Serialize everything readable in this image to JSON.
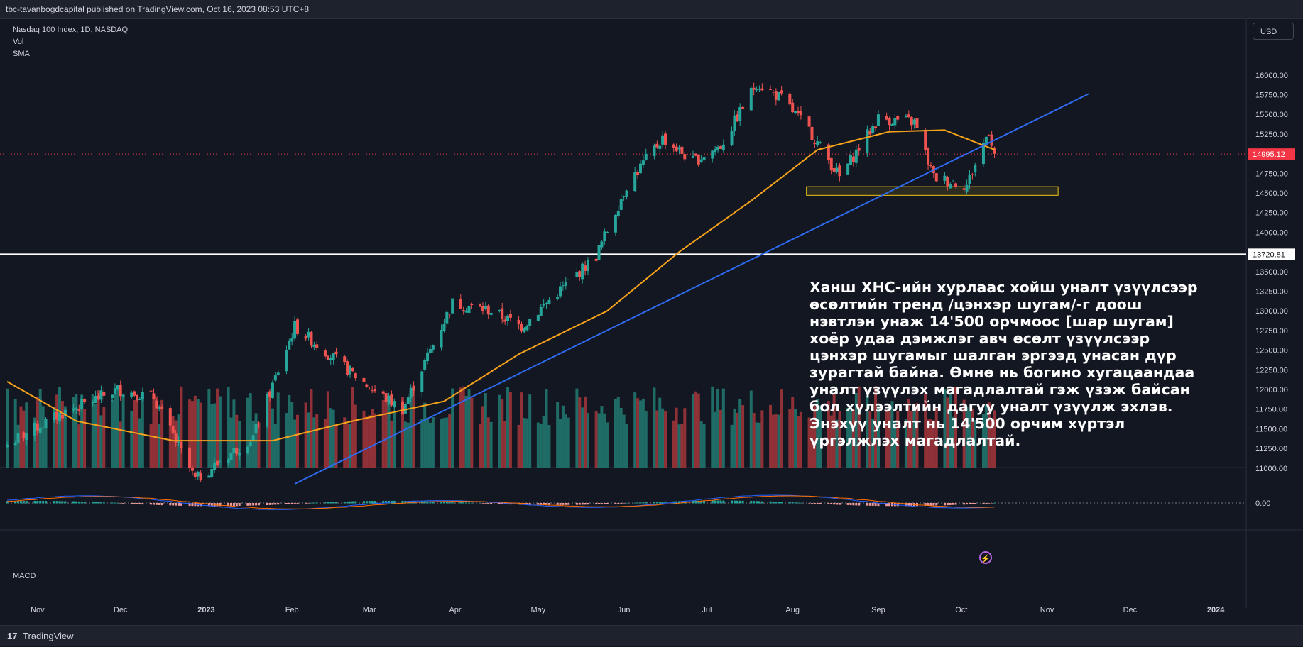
{
  "header": {
    "published_by": "tbc-tavanbogdcapital published on TradingView.com, Oct 16, 2023 08:53 UTC+8"
  },
  "legend": {
    "symbol": "Nasdaq 100 Index, 1D, NASDAQ",
    "vol": "Vol",
    "sma": "SMA"
  },
  "currency_button": "USD",
  "annotation": "Ханш ХНС-ийн хурлаас хойш уналт үзүүлсээр\nөсөлтийн тренд /цэнхэр шугам/-г доош\nнэвтлэн унаж 14'500 орчмоос [шар шугам]\nхоёр удаа дэмжлэг авч өсөлт үзүүлсээр\nцэнхэр шугамыг шалган эргээд унасан дүр\nзурагтай байна. Өмнө нь богино хугацаандаа\nуналт үзүүлэх магадлалтай гэж үзэж байсан\nбол хүлээлтийн дагуу уналт үзүүлж эхлэв.\nЭнэхүү уналт нь 14'500 орчим хүртэл\nүргэлжлэх магадлалтай.",
  "macd_label": "MACD",
  "footer": {
    "brand": "TradingView",
    "logo": "17"
  },
  "chart_data": {
    "type": "candlestick",
    "symbol": "Nasdaq 100 Index",
    "interval": "1D",
    "exchange": "NASDAQ",
    "y_ticks": [
      "16000.00",
      "15750.00",
      "15500.00",
      "15250.00",
      "14750.00",
      "14500.00",
      "14250.00",
      "14000.00",
      "13500.00",
      "13250.00",
      "13000.00",
      "12750.00",
      "12500.00",
      "12250.00",
      "12000.00",
      "11750.00",
      "11500.00",
      "11250.00",
      "11000.00"
    ],
    "ylim": [
      10800,
      16350
    ],
    "x_ticks": [
      "Nov",
      "Dec",
      "2023",
      "Feb",
      "Mar",
      "Apr",
      "May",
      "Jun",
      "Jul",
      "Aug",
      "Sep",
      "Oct",
      "Nov",
      "Dec",
      "2024"
    ],
    "last_price": "14995.12",
    "last_price_value": 14995.12,
    "horizontal_line": {
      "value": 13720.81,
      "label": "13720.81"
    },
    "support_zone": {
      "low": 14470,
      "high": 14580
    },
    "macd_tick": "0.00",
    "close_path": [
      {
        "date": "2022-10-21",
        "value": 11300
      },
      {
        "date": "2022-11-10",
        "value": 11700
      },
      {
        "date": "2022-11-30",
        "value": 12000
      },
      {
        "date": "2022-12-13",
        "value": 11900
      },
      {
        "date": "2022-12-28",
        "value": 10850
      },
      {
        "date": "2023-01-18",
        "value": 11400
      },
      {
        "date": "2023-02-02",
        "value": 12800
      },
      {
        "date": "2023-02-16",
        "value": 12400
      },
      {
        "date": "2023-03-02",
        "value": 12000
      },
      {
        "date": "2023-03-13",
        "value": 11750
      },
      {
        "date": "2023-03-31",
        "value": 13100
      },
      {
        "date": "2023-04-14",
        "value": 13000
      },
      {
        "date": "2023-04-25",
        "value": 12800
      },
      {
        "date": "2023-05-10",
        "value": 13300
      },
      {
        "date": "2023-05-22",
        "value": 13700
      },
      {
        "date": "2023-06-02",
        "value": 14600
      },
      {
        "date": "2023-06-15",
        "value": 15200
      },
      {
        "date": "2023-06-26",
        "value": 14900
      },
      {
        "date": "2023-07-06",
        "value": 15100
      },
      {
        "date": "2023-07-19",
        "value": 15900
      },
      {
        "date": "2023-07-28",
        "value": 15700
      },
      {
        "date": "2023-08-07",
        "value": 15300
      },
      {
        "date": "2023-08-18",
        "value": 14700
      },
      {
        "date": "2023-09-01",
        "value": 15450
      },
      {
        "date": "2023-09-14",
        "value": 15400
      },
      {
        "date": "2023-09-21",
        "value": 14700
      },
      {
        "date": "2023-10-03",
        "value": 14600
      },
      {
        "date": "2023-10-11",
        "value": 15300
      },
      {
        "date": "2023-10-13",
        "value": 14995
      }
    ],
    "sma_path": [
      {
        "date": "2022-10-21",
        "value": 12100
      },
      {
        "date": "2022-11-15",
        "value": 11600
      },
      {
        "date": "2022-12-20",
        "value": 11350
      },
      {
        "date": "2023-01-25",
        "value": 11350
      },
      {
        "date": "2023-02-23",
        "value": 11600
      },
      {
        "date": "2023-03-28",
        "value": 11850
      },
      {
        "date": "2023-04-24",
        "value": 12450
      },
      {
        "date": "2023-05-26",
        "value": 13000
      },
      {
        "date": "2023-06-21",
        "value": 13750
      },
      {
        "date": "2023-07-17",
        "value": 14400
      },
      {
        "date": "2023-08-10",
        "value": 15050
      },
      {
        "date": "2023-09-05",
        "value": 15280
      },
      {
        "date": "2023-09-25",
        "value": 15300
      },
      {
        "date": "2023-10-13",
        "value": 15050
      }
    ],
    "trendline": {
      "start": {
        "date": "2023-02-02",
        "value": 10800
      },
      "end": {
        "date": "2023-11-16",
        "value": 15760
      }
    },
    "colors": {
      "up": "#26a69a",
      "down": "#ef5350",
      "up_volume": "#1f6b66",
      "down_volume": "#8f3136",
      "sma": "#f7a21b",
      "trendline": "#2f6bf2",
      "support": "#f0c419",
      "background": "#131722",
      "macd": "#2962ff",
      "signal": "#ff6d00",
      "price_label": "#f23645"
    }
  }
}
